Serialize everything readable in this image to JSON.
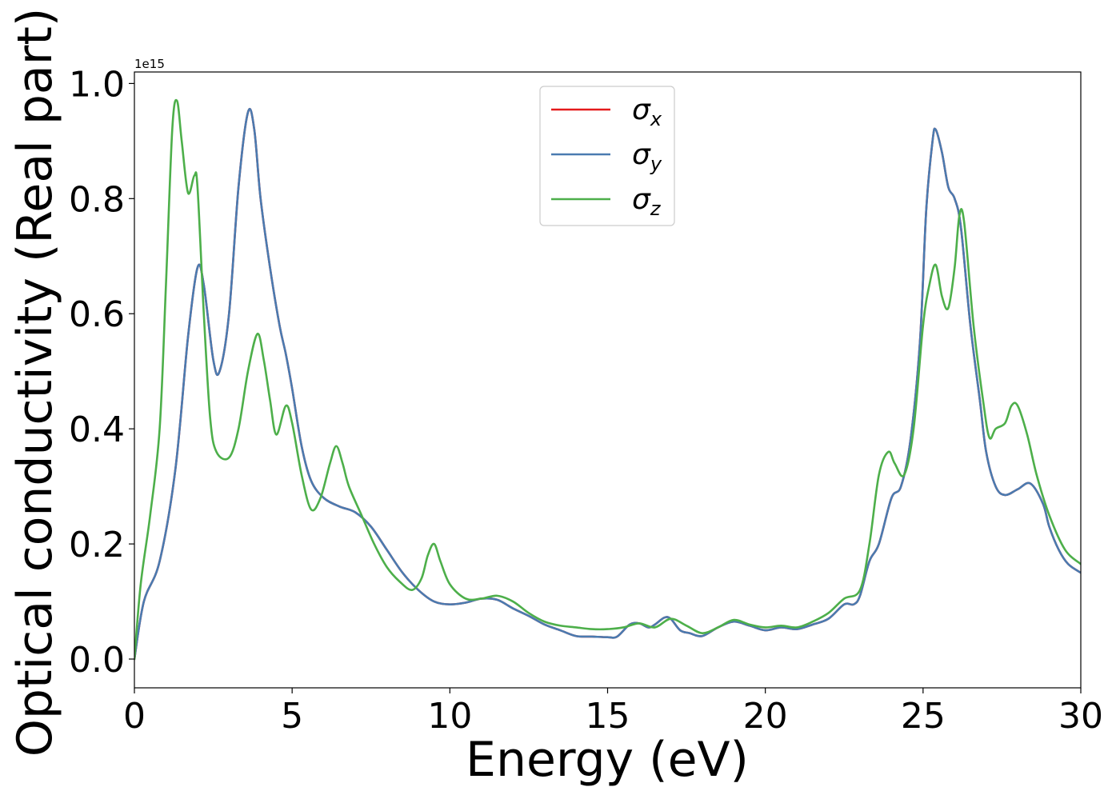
{
  "chart_data": {
    "type": "line",
    "xlabel": "Energy (eV)",
    "ylabel": "Optical conductivity (Real part)",
    "y_offset_label": "1e15",
    "xlim": [
      0,
      30
    ],
    "ylim": [
      -0.05,
      1.02
    ],
    "x_ticks": [
      0,
      5,
      10,
      15,
      20,
      25,
      30
    ],
    "y_ticks": [
      0.0,
      0.2,
      0.4,
      0.6,
      0.8,
      1.0
    ],
    "x_tick_labels": [
      "0",
      "5",
      "10",
      "15",
      "20",
      "25",
      "30"
    ],
    "y_tick_labels": [
      "0.0",
      "0.2",
      "0.4",
      "0.6",
      "0.8",
      "1.0"
    ],
    "grid": false,
    "legend_position": "top-center",
    "series": [
      {
        "name": "σx",
        "symbol": "σ",
        "subscript": "x",
        "color": "#e41a1c",
        "x": [
          0,
          0.3,
          0.8,
          1.3,
          1.7,
          2.0,
          2.2,
          2.5,
          2.7,
          3.0,
          3.3,
          3.6,
          3.8,
          4.0,
          4.3,
          4.6,
          4.8,
          5.0,
          5.3,
          5.6,
          6.0,
          6.5,
          7.0,
          7.5,
          8.0,
          8.5,
          9.0,
          9.5,
          10.0,
          10.5,
          11.0,
          11.5,
          12.0,
          12.5,
          13.0,
          13.5,
          14.0,
          14.5,
          15.0,
          15.3,
          15.7,
          16.0,
          16.3,
          16.5,
          16.8,
          17.0,
          17.3,
          17.6,
          18.0,
          18.5,
          19.0,
          19.5,
          20.0,
          20.5,
          21.0,
          21.5,
          22.0,
          22.5,
          22.8,
          23.0,
          23.3,
          23.6,
          24.0,
          24.3,
          24.6,
          24.9,
          25.1,
          25.3,
          25.4,
          25.6,
          25.8,
          26.0,
          26.2,
          26.5,
          26.8,
          27.0,
          27.3,
          27.6,
          28.0,
          28.4,
          28.8,
          29.0,
          29.3,
          29.6,
          30.0
        ],
        "y": [
          0,
          0.1,
          0.17,
          0.33,
          0.56,
          0.68,
          0.65,
          0.52,
          0.5,
          0.6,
          0.82,
          0.95,
          0.92,
          0.8,
          0.68,
          0.58,
          0.53,
          0.47,
          0.37,
          0.31,
          0.28,
          0.265,
          0.255,
          0.23,
          0.19,
          0.15,
          0.12,
          0.1,
          0.095,
          0.098,
          0.105,
          0.103,
          0.088,
          0.075,
          0.06,
          0.05,
          0.04,
          0.039,
          0.038,
          0.039,
          0.06,
          0.062,
          0.055,
          0.06,
          0.072,
          0.07,
          0.05,
          0.045,
          0.04,
          0.055,
          0.065,
          0.058,
          0.05,
          0.055,
          0.052,
          0.06,
          0.07,
          0.095,
          0.095,
          0.11,
          0.17,
          0.2,
          0.28,
          0.3,
          0.38,
          0.55,
          0.78,
          0.9,
          0.92,
          0.88,
          0.82,
          0.8,
          0.75,
          0.58,
          0.45,
          0.36,
          0.3,
          0.285,
          0.295,
          0.305,
          0.27,
          0.23,
          0.19,
          0.165,
          0.15
        ]
      },
      {
        "name": "σy",
        "symbol": "σ",
        "subscript": "y",
        "color": "#4a7bb0",
        "x": [
          0,
          0.3,
          0.8,
          1.3,
          1.7,
          2.0,
          2.2,
          2.5,
          2.7,
          3.0,
          3.3,
          3.6,
          3.8,
          4.0,
          4.3,
          4.6,
          4.8,
          5.0,
          5.3,
          5.6,
          6.0,
          6.5,
          7.0,
          7.5,
          8.0,
          8.5,
          9.0,
          9.5,
          10.0,
          10.5,
          11.0,
          11.5,
          12.0,
          12.5,
          13.0,
          13.5,
          14.0,
          14.5,
          15.0,
          15.3,
          15.7,
          16.0,
          16.3,
          16.5,
          16.8,
          17.0,
          17.3,
          17.6,
          18.0,
          18.5,
          19.0,
          19.5,
          20.0,
          20.5,
          21.0,
          21.5,
          22.0,
          22.5,
          22.8,
          23.0,
          23.3,
          23.6,
          24.0,
          24.3,
          24.6,
          24.9,
          25.1,
          25.3,
          25.4,
          25.6,
          25.8,
          26.0,
          26.2,
          26.5,
          26.8,
          27.0,
          27.3,
          27.6,
          28.0,
          28.4,
          28.8,
          29.0,
          29.3,
          29.6,
          30.0
        ],
        "y": [
          0,
          0.1,
          0.17,
          0.33,
          0.56,
          0.68,
          0.65,
          0.52,
          0.5,
          0.6,
          0.82,
          0.95,
          0.92,
          0.8,
          0.68,
          0.58,
          0.53,
          0.47,
          0.37,
          0.31,
          0.28,
          0.265,
          0.255,
          0.23,
          0.19,
          0.15,
          0.12,
          0.1,
          0.095,
          0.098,
          0.105,
          0.103,
          0.088,
          0.075,
          0.06,
          0.05,
          0.04,
          0.039,
          0.038,
          0.039,
          0.06,
          0.062,
          0.055,
          0.06,
          0.072,
          0.07,
          0.05,
          0.045,
          0.04,
          0.055,
          0.065,
          0.058,
          0.05,
          0.055,
          0.052,
          0.06,
          0.07,
          0.095,
          0.095,
          0.11,
          0.17,
          0.2,
          0.28,
          0.3,
          0.38,
          0.55,
          0.78,
          0.9,
          0.92,
          0.88,
          0.82,
          0.8,
          0.75,
          0.58,
          0.45,
          0.36,
          0.3,
          0.285,
          0.295,
          0.305,
          0.27,
          0.23,
          0.19,
          0.165,
          0.15
        ]
      },
      {
        "name": "σz",
        "symbol": "σ",
        "subscript": "z",
        "color": "#4daf4a",
        "x": [
          0,
          0.2,
          0.5,
          0.8,
          1.0,
          1.2,
          1.35,
          1.5,
          1.7,
          1.9,
          2.0,
          2.2,
          2.4,
          2.6,
          3.0,
          3.3,
          3.6,
          3.9,
          4.1,
          4.3,
          4.5,
          4.8,
          5.0,
          5.3,
          5.6,
          5.9,
          6.2,
          6.4,
          6.6,
          6.8,
          7.2,
          7.6,
          8.0,
          8.4,
          8.8,
          9.1,
          9.3,
          9.5,
          9.7,
          10.0,
          10.5,
          11.0,
          11.5,
          12.0,
          12.5,
          13.0,
          13.5,
          14.0,
          14.5,
          15.0,
          15.5,
          16.0,
          16.5,
          17.0,
          17.5,
          18.0,
          18.5,
          19.0,
          19.5,
          20.0,
          20.5,
          21.0,
          21.5,
          22.0,
          22.5,
          23.0,
          23.3,
          23.6,
          23.9,
          24.1,
          24.4,
          24.7,
          25.0,
          25.2,
          25.4,
          25.6,
          25.8,
          26.0,
          26.15,
          26.3,
          26.6,
          26.9,
          27.1,
          27.3,
          27.6,
          27.8,
          28.0,
          28.3,
          28.6,
          29.0,
          29.5,
          30.0
        ],
        "y": [
          0,
          0.13,
          0.25,
          0.4,
          0.65,
          0.92,
          0.97,
          0.9,
          0.81,
          0.84,
          0.82,
          0.6,
          0.42,
          0.36,
          0.35,
          0.4,
          0.5,
          0.565,
          0.52,
          0.45,
          0.39,
          0.44,
          0.41,
          0.32,
          0.26,
          0.28,
          0.34,
          0.37,
          0.34,
          0.3,
          0.25,
          0.2,
          0.16,
          0.135,
          0.12,
          0.14,
          0.18,
          0.2,
          0.17,
          0.13,
          0.105,
          0.105,
          0.11,
          0.1,
          0.08,
          0.065,
          0.058,
          0.055,
          0.052,
          0.052,
          0.055,
          0.062,
          0.055,
          0.07,
          0.058,
          0.045,
          0.055,
          0.068,
          0.06,
          0.055,
          0.058,
          0.055,
          0.065,
          0.08,
          0.105,
          0.12,
          0.2,
          0.32,
          0.36,
          0.34,
          0.32,
          0.4,
          0.58,
          0.65,
          0.685,
          0.63,
          0.61,
          0.68,
          0.77,
          0.76,
          0.58,
          0.45,
          0.385,
          0.4,
          0.41,
          0.44,
          0.44,
          0.39,
          0.32,
          0.25,
          0.19,
          0.165
        ]
      }
    ]
  }
}
